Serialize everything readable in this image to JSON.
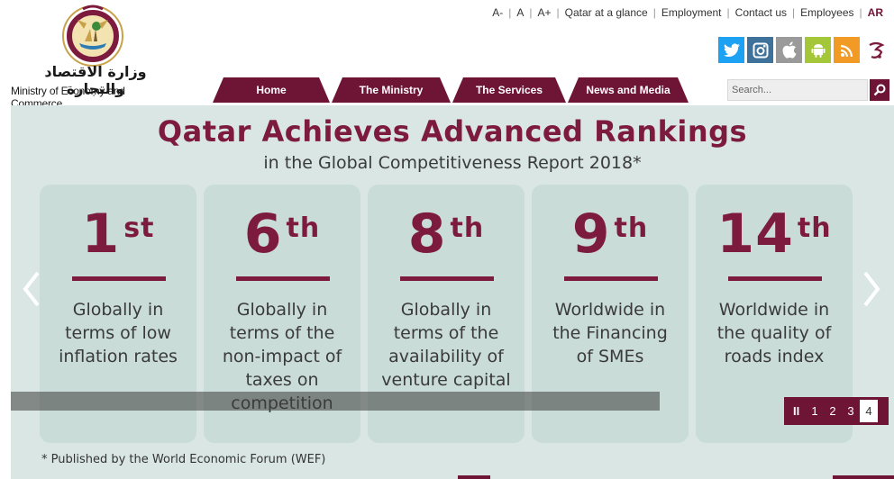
{
  "logo": {
    "arabic_name": "وزارة الاقتصاد والتجارة",
    "english_name": "Ministry of Economy and Commerce"
  },
  "topnav": {
    "font_decrease": "A-",
    "font_default": "A",
    "font_increase": "A+",
    "links": [
      "Qatar at a glance",
      "Employment",
      "Contact us",
      "Employees"
    ],
    "language": "AR"
  },
  "social": [
    {
      "icon": "twitter-icon",
      "color": "#1da1f2"
    },
    {
      "icon": "instagram-icon",
      "color": "#3f729b"
    },
    {
      "icon": "apple-icon",
      "color": "#9a9a9a"
    },
    {
      "icon": "android-icon",
      "color": "#a4c639"
    },
    {
      "icon": "rss-icon",
      "color": "#f29a26"
    },
    {
      "icon": "hukoomi-icon",
      "color": "#7d1b3f"
    }
  ],
  "mainnav": [
    "Home",
    "The Ministry",
    "The Services",
    "News and Media"
  ],
  "search": {
    "placeholder": "Search..."
  },
  "banner": {
    "headline": "Qatar Achieves Advanced Rankings",
    "subhead": "in the Global Competitiveness Report 2018*",
    "cards": [
      {
        "num": "1",
        "suffix": "st",
        "lines": [
          "Globally in",
          "terms of low",
          "inflation rates"
        ]
      },
      {
        "num": "6",
        "suffix": "th",
        "lines": [
          "Globally in",
          "terms of the",
          "non-impact of",
          "taxes on",
          "competition"
        ]
      },
      {
        "num": "8",
        "suffix": "th",
        "lines": [
          "Globally in",
          "terms of the",
          "availability of",
          "venture capital"
        ]
      },
      {
        "num": "9",
        "suffix": "th",
        "lines": [
          "Worldwide in",
          "the Financing",
          "of SMEs"
        ]
      },
      {
        "num": "14",
        "suffix": "th",
        "lines": [
          "Worldwide in",
          "the quality of",
          "roads index"
        ]
      }
    ],
    "footnote": "* Published by the World Economic Forum (WEF)"
  },
  "pager": {
    "pause": "II",
    "pages": [
      "1",
      "2",
      "3",
      "4"
    ],
    "active_page": "4"
  },
  "colors": {
    "brand": "#6e1535",
    "accent": "#7d1b3f",
    "banner_bg": "#d9e6e3",
    "card_bg": "#c9dcd7"
  }
}
